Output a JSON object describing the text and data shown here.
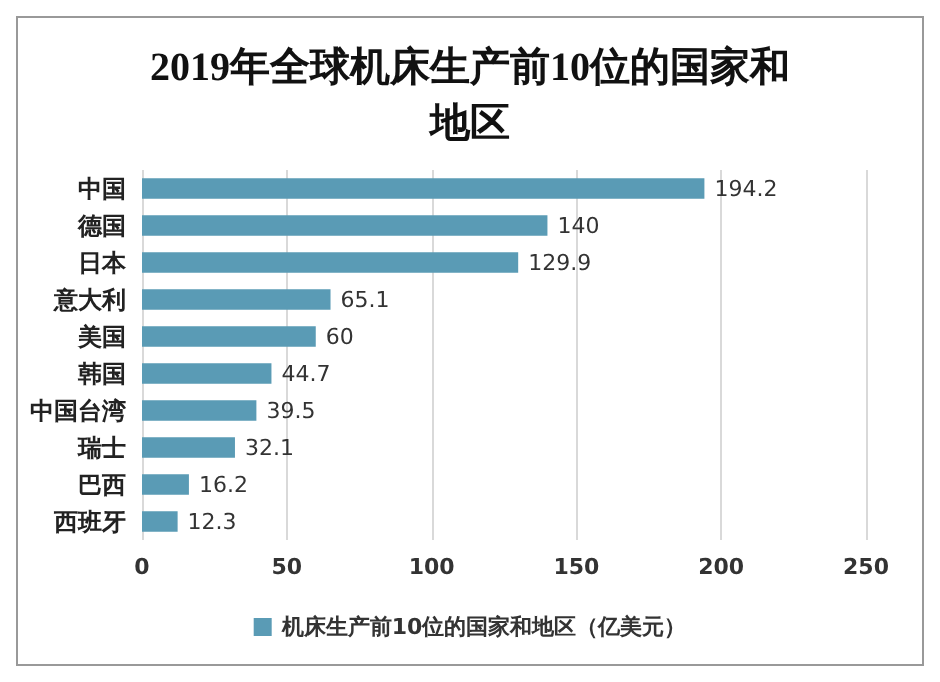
{
  "chart_data": {
    "type": "bar",
    "orientation": "horizontal",
    "title": "2019年全球机床生产前10位的国家和地区",
    "categories": [
      "中国",
      "德国",
      "日本",
      "意大利",
      "美国",
      "韩国",
      "中国台湾",
      "瑞士",
      "巴西",
      "西班牙"
    ],
    "series": [
      {
        "name": "机床生产前10位的国家和地区（亿美元）",
        "color": "#5a9bb5",
        "values": [
          194.2,
          140,
          129.9,
          65.1,
          60,
          44.7,
          39.5,
          32.1,
          16.2,
          12.3
        ]
      }
    ],
    "xlim": [
      0,
      250
    ],
    "xticks": [
      0,
      50,
      100,
      150,
      200,
      250
    ],
    "grid": "x",
    "legend": "bottom",
    "data_labels": true
  }
}
